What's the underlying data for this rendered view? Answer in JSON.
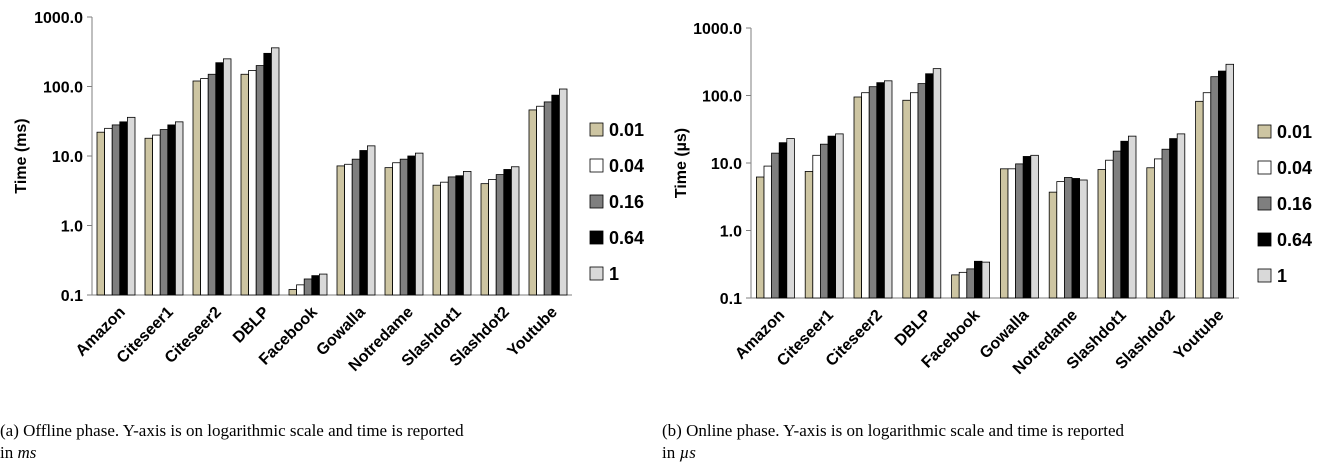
{
  "chart_data": [
    {
      "type": "bar",
      "ylabel": "Time (ms)",
      "yscale": "log",
      "ylim": [
        0.1,
        1000.0
      ],
      "yticks": [
        "0.1",
        "1.0",
        "10.0",
        "100.0",
        "1000.0"
      ],
      "legend_position": "right",
      "categories": [
        "Amazon",
        "Citeseer1",
        "Citeseer2",
        "DBLP",
        "Facebook",
        "Gowalla",
        "Notredame",
        "Slashdot1",
        "Slashdot2",
        "Youtube"
      ],
      "series": [
        {
          "name": "0.01",
          "color": "#cdc5a2",
          "values": [
            22,
            18,
            120,
            150,
            0.12,
            7.2,
            6.8,
            3.8,
            4.0,
            46
          ]
        },
        {
          "name": "0.04",
          "color": "#ffffff",
          "values": [
            25,
            20,
            130,
            170,
            0.14,
            7.6,
            8.0,
            4.2,
            4.6,
            52
          ]
        },
        {
          "name": "0.16",
          "color": "#7f7f7f",
          "values": [
            28,
            24,
            150,
            200,
            0.17,
            9.0,
            9.0,
            5.0,
            5.4,
            60
          ]
        },
        {
          "name": "0.64",
          "color": "#000000",
          "values": [
            31,
            28,
            220,
            300,
            0.19,
            12.0,
            10.0,
            5.2,
            6.4,
            75
          ]
        },
        {
          "name": "1",
          "color": "#d9d9d9",
          "values": [
            36,
            31,
            250,
            360,
            0.2,
            14.0,
            11.0,
            6.0,
            7.0,
            92
          ]
        }
      ]
    },
    {
      "type": "bar",
      "ylabel": "Time (µs)",
      "yscale": "log",
      "ylim": [
        0.1,
        1000.0
      ],
      "yticks": [
        "0.1",
        "1.0",
        "10.0",
        "100.0",
        "1000.0"
      ],
      "legend_position": "right",
      "categories": [
        "Amazon",
        "Citeseer1",
        "Citeseer2",
        "DBLP",
        "Facebook",
        "Gowalla",
        "Notredame",
        "Slashdot1",
        "Slashdot2",
        "Youtube"
      ],
      "series": [
        {
          "name": "0.01",
          "color": "#cdc5a2",
          "values": [
            6.2,
            7.5,
            95,
            85,
            0.22,
            8.2,
            3.7,
            8.0,
            8.5,
            82
          ]
        },
        {
          "name": "0.04",
          "color": "#ffffff",
          "values": [
            9.0,
            13,
            110,
            110,
            0.24,
            8.2,
            5.3,
            11,
            11.5,
            110
          ]
        },
        {
          "name": "0.16",
          "color": "#7f7f7f",
          "values": [
            14,
            19,
            135,
            150,
            0.27,
            9.7,
            6.1,
            15,
            16,
            190
          ]
        },
        {
          "name": "0.64",
          "color": "#000000",
          "values": [
            20,
            25,
            155,
            210,
            0.35,
            12.5,
            5.9,
            21,
            23,
            230
          ]
        },
        {
          "name": "1",
          "color": "#d9d9d9",
          "values": [
            23,
            27,
            165,
            250,
            0.34,
            13,
            5.6,
            25,
            27,
            290
          ]
        }
      ]
    }
  ],
  "captions": [
    {
      "prefix": "(a)  Offline phase.  Y-axis is on logarithmic scale and time is reported",
      "line2": "in ",
      "unit": "ms"
    },
    {
      "prefix": "(b)  Online phase.  Y-axis is on logarithmic scale and time is reported",
      "line2": "in ",
      "unit": "µs"
    }
  ]
}
